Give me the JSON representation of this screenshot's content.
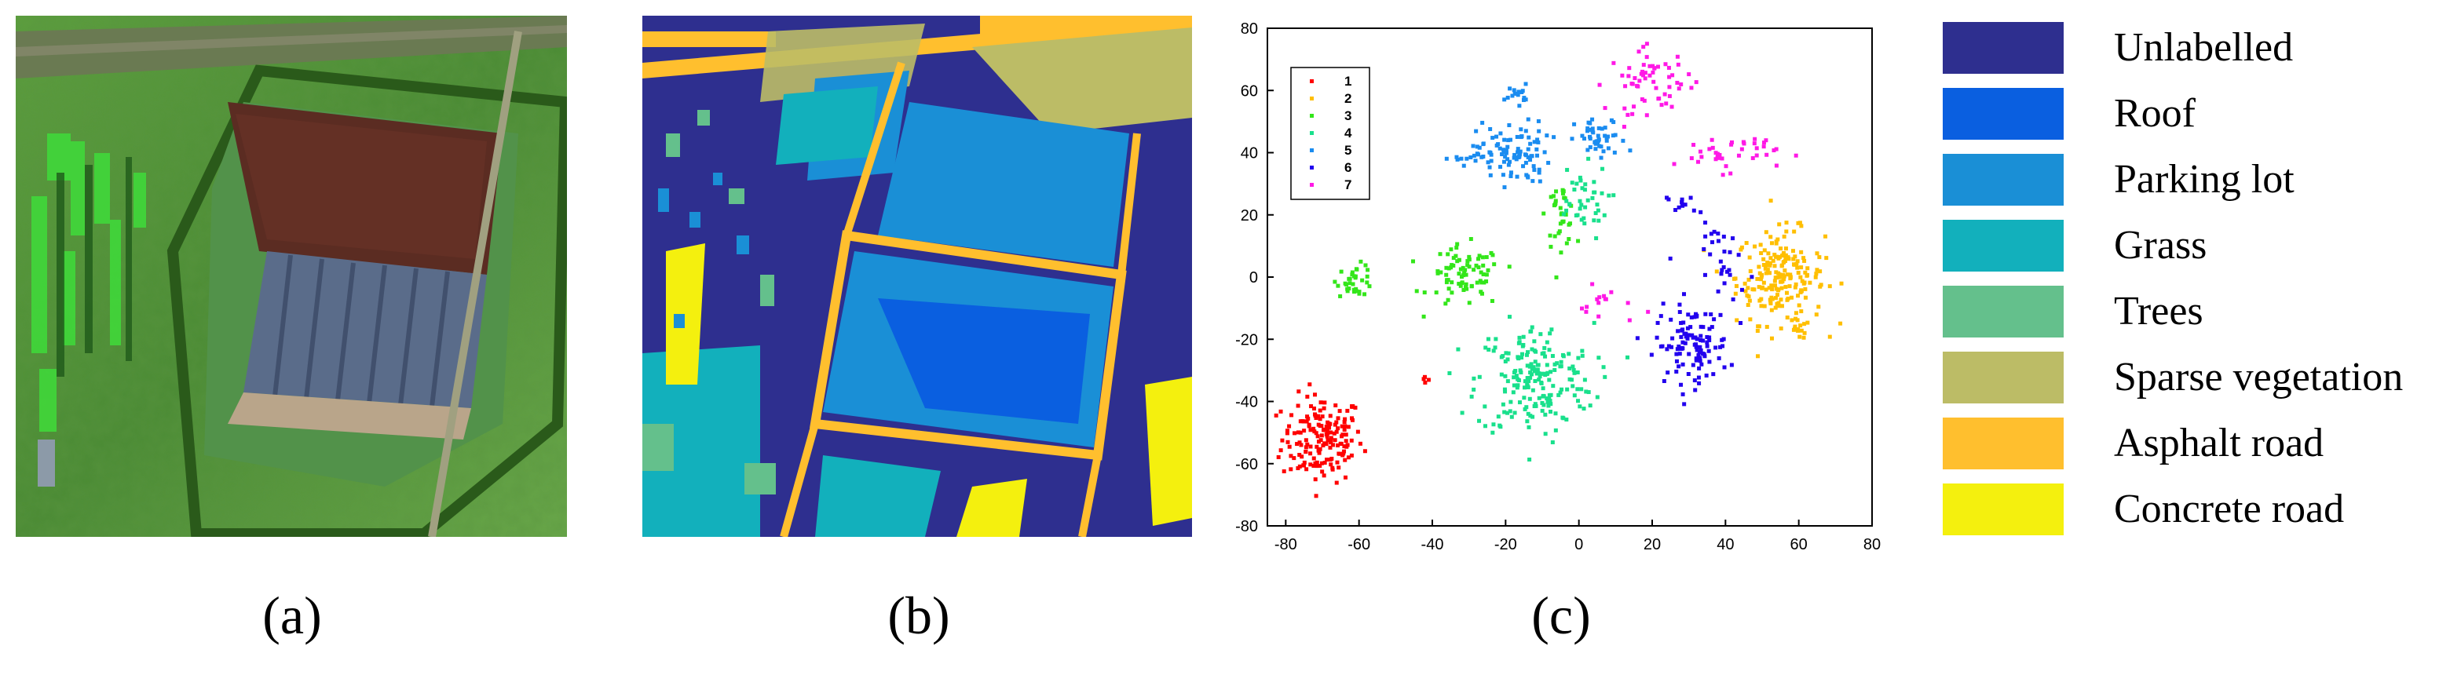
{
  "captions": {
    "a": "(a)",
    "b": "(b)",
    "c": "(c)"
  },
  "legend": [
    {
      "label": "Unlabelled",
      "color": "#2e2f8f"
    },
    {
      "label": "Roof",
      "color": "#0a5fe0"
    },
    {
      "label": "Parking lot",
      "color": "#1a8fd6"
    },
    {
      "label": "Grass",
      "color": "#12b0bc"
    },
    {
      "label": "Trees",
      "color": "#64c08c"
    },
    {
      "label": "Sparse vegetation",
      "color": "#bcbc66"
    },
    {
      "label": "Asphalt road",
      "color": "#ffbf2e"
    },
    {
      "label": "Concrete road",
      "color": "#f4f00e"
    }
  ],
  "chart_data": {
    "type": "scatter",
    "title": "",
    "xlabel": "",
    "ylabel": "",
    "xlim": [
      -85,
      80
    ],
    "ylim": [
      -80,
      80
    ],
    "xticks": [
      -80,
      -60,
      -40,
      -20,
      0,
      20,
      40,
      60,
      80
    ],
    "yticks": [
      -80,
      -60,
      -40,
      -20,
      0,
      20,
      40,
      60,
      80
    ],
    "legend_position": "top-left",
    "series": [
      {
        "name": "1",
        "color": "#ff0000",
        "clusters": [
          {
            "cx": -70,
            "cy": -52,
            "sx": 5.5,
            "sy": 7,
            "n": 170
          },
          {
            "cx": -42,
            "cy": -33,
            "sx": 0.6,
            "sy": 1,
            "n": 4
          }
        ]
      },
      {
        "name": "2",
        "color": "#ffbf00",
        "clusters": [
          {
            "cx": 55,
            "cy": 0,
            "sx": 6,
            "sy": 7.5,
            "n": 200
          },
          {
            "cx": 60,
            "cy": -17,
            "sx": 1.5,
            "sy": 1.5,
            "n": 12
          }
        ]
      },
      {
        "name": "3",
        "color": "#33e61a",
        "clusters": [
          {
            "cx": -31,
            "cy": 0,
            "sx": 5,
            "sy": 5,
            "n": 80
          },
          {
            "cx": -61,
            "cy": -1,
            "sx": 2.5,
            "sy": 2.5,
            "n": 35
          },
          {
            "cx": -5,
            "cy": 20,
            "sx": 2,
            "sy": 5,
            "n": 35
          }
        ]
      },
      {
        "name": "4",
        "color": "#19e08c",
        "clusters": [
          {
            "cx": -12,
            "cy": -33,
            "sx": 8,
            "sy": 9,
            "n": 200
          },
          {
            "cx": 0,
            "cy": 24,
            "sx": 4,
            "sy": 6,
            "n": 40
          }
        ]
      },
      {
        "name": "5",
        "color": "#1a8cf0",
        "clusters": [
          {
            "cx": -18,
            "cy": 40,
            "sx": 5,
            "sy": 5,
            "n": 90
          },
          {
            "cx": 6,
            "cy": 44,
            "sx": 3.5,
            "sy": 3.5,
            "n": 45
          },
          {
            "cx": -17,
            "cy": 59,
            "sx": 1.5,
            "sy": 1.5,
            "n": 15
          },
          {
            "cx": -29,
            "cy": 38,
            "sx": 4,
            "sy": 1,
            "n": 15
          }
        ]
      },
      {
        "name": "6",
        "color": "#2200ee",
        "clusters": [
          {
            "cx": 31,
            "cy": -22,
            "sx": 5,
            "sy": 6,
            "n": 110
          },
          {
            "cx": 40,
            "cy": 5,
            "sx": 4,
            "sy": 6,
            "n": 30
          },
          {
            "cx": 28,
            "cy": 23,
            "sx": 2,
            "sy": 2,
            "n": 12
          }
        ]
      },
      {
        "name": "7",
        "color": "#ff19e6",
        "clusters": [
          {
            "cx": 20,
            "cy": 63,
            "sx": 6,
            "sy": 5,
            "n": 60
          },
          {
            "cx": 40,
            "cy": 40,
            "sx": 7,
            "sy": 3,
            "n": 40
          },
          {
            "cx": 8,
            "cy": -9,
            "sx": 4,
            "sy": 3,
            "n": 15
          }
        ]
      }
    ]
  }
}
